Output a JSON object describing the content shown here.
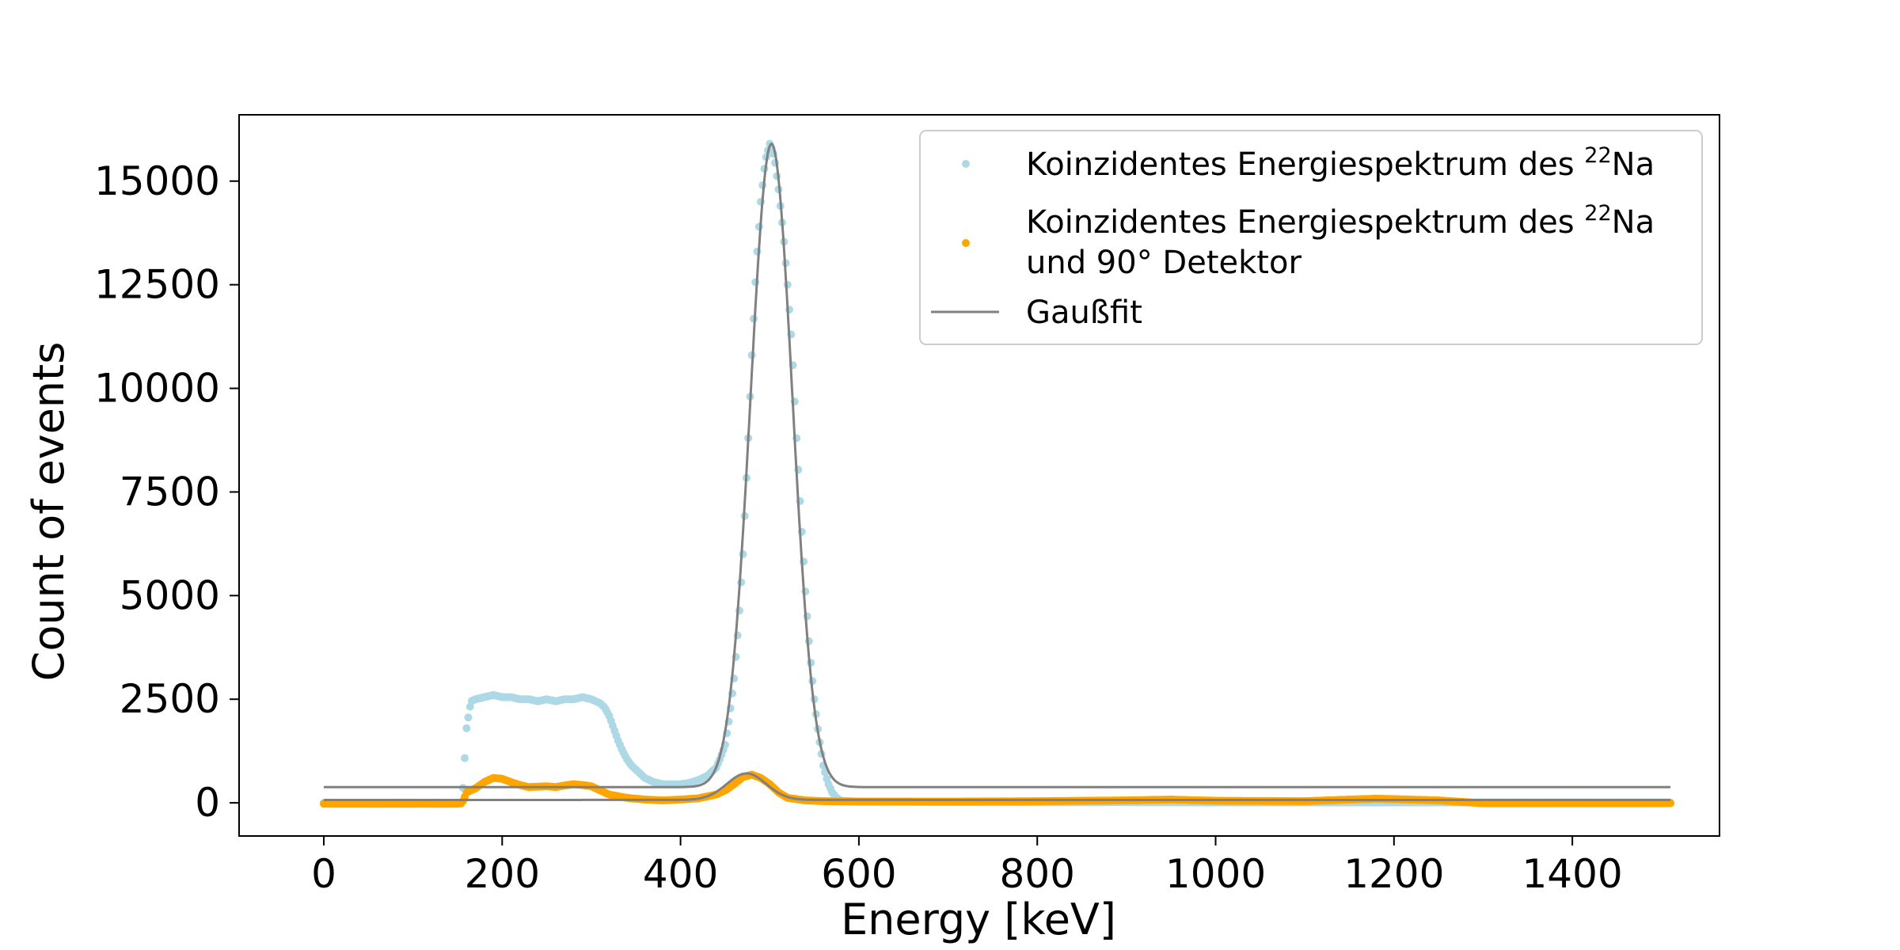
{
  "chart_data": {
    "type": "scatter",
    "xlabel": "Energy [keV]",
    "ylabel": "Count of events",
    "xlim": [
      -95,
      1565
    ],
    "ylim": [
      -800,
      16600
    ],
    "xticks": [
      0,
      200,
      400,
      600,
      800,
      1000,
      1200,
      1400
    ],
    "yticks": [
      0,
      2500,
      5000,
      7500,
      10000,
      12500,
      15000
    ],
    "grid": false,
    "legend_position": "top-right",
    "series": [
      {
        "name": "Koinzidentes Energiespektrum des 22Na",
        "legend_text": "Koinzidentes Energiespektrum des",
        "legend_sup": "22",
        "legend_suffix": "Na",
        "kind": "points",
        "color": "#add8e6",
        "x": [
          0,
          50,
          100,
          150,
          155,
          160,
          165,
          170,
          180,
          190,
          200,
          210,
          220,
          230,
          240,
          250,
          260,
          270,
          280,
          290,
          300,
          305,
          310,
          315,
          320,
          325,
          330,
          335,
          340,
          345,
          350,
          355,
          360,
          370,
          380,
          390,
          400,
          410,
          420,
          430,
          440,
          445,
          450,
          455,
          460,
          465,
          470,
          475,
          480,
          485,
          490,
          495,
          500,
          505,
          510,
          515,
          520,
          525,
          530,
          535,
          540,
          545,
          550,
          555,
          560,
          565,
          570,
          575,
          580,
          600,
          700,
          800,
          900,
          1000,
          1100,
          1200,
          1250,
          1300,
          1400,
          1510
        ],
        "y": [
          0,
          0,
          0,
          0,
          0,
          1800,
          2450,
          2500,
          2550,
          2600,
          2550,
          2550,
          2500,
          2500,
          2450,
          2500,
          2450,
          2500,
          2500,
          2550,
          2500,
          2450,
          2400,
          2300,
          2100,
          1800,
          1500,
          1250,
          1050,
          900,
          800,
          700,
          600,
          500,
          450,
          450,
          450,
          480,
          550,
          650,
          850,
          1100,
          1400,
          2100,
          3000,
          4300,
          6000,
          8300,
          10800,
          13000,
          14500,
          15500,
          15900,
          15600,
          14800,
          13800,
          12500,
          11000,
          8800,
          6900,
          5100,
          3600,
          2500,
          1600,
          900,
          500,
          250,
          120,
          50,
          30,
          20,
          15,
          15,
          10,
          10,
          10,
          10,
          10,
          10,
          10
        ]
      },
      {
        "name": "Koinzidentes Energiespektrum des 22Na und 90° Detektor",
        "legend_text": "Koinzidentes Energiespektrum des",
        "legend_sup": "22",
        "legend_suffix": "Na",
        "legend_line2": "und 90° Detektor",
        "kind": "points",
        "color": "#ffa500",
        "x": [
          0,
          50,
          100,
          150,
          155,
          160,
          170,
          180,
          190,
          200,
          210,
          220,
          230,
          240,
          250,
          260,
          270,
          280,
          290,
          300,
          310,
          320,
          340,
          360,
          380,
          400,
          420,
          440,
          450,
          460,
          470,
          480,
          490,
          500,
          510,
          520,
          540,
          560,
          600,
          700,
          800,
          900,
          950,
          1000,
          1100,
          1150,
          1180,
          1200,
          1250,
          1300,
          1400,
          1510
        ],
        "y": [
          -20,
          -20,
          -20,
          -20,
          -10,
          250,
          350,
          500,
          600,
          580,
          500,
          430,
          380,
          390,
          400,
          380,
          420,
          450,
          430,
          400,
          300,
          200,
          120,
          80,
          60,
          80,
          110,
          200,
          300,
          450,
          620,
          680,
          600,
          450,
          250,
          120,
          60,
          40,
          30,
          30,
          40,
          60,
          80,
          50,
          40,
          80,
          100,
          90,
          60,
          -10,
          -10,
          -10
        ]
      },
      {
        "name": "Gaußfit",
        "legend_text": "Gaußfit",
        "kind": "lines",
        "color": "#808080",
        "fits": [
          {
            "mu": 502,
            "sigma": 23.5,
            "amp": 15520,
            "offset": 380,
            "xmin": 0,
            "xmax": 1510
          },
          {
            "mu": 474,
            "sigma": 22,
            "amp": 640,
            "offset": 70,
            "xmin": 0,
            "xmax": 1510
          }
        ]
      }
    ]
  }
}
